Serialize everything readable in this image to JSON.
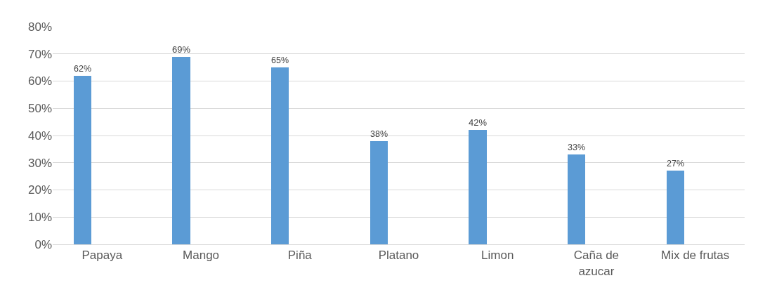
{
  "chart_data": {
    "type": "bar",
    "categories": [
      "Papaya",
      "Mango",
      "Piña",
      "Platano",
      "Limon",
      "Caña de\nazucar",
      "Mix de frutas"
    ],
    "values": [
      62,
      69,
      65,
      38,
      42,
      33,
      27
    ],
    "value_labels": [
      "62%",
      "69%",
      "65%",
      "38%",
      "42%",
      "33%",
      "27%"
    ],
    "color": "#5b9bd5",
    "ylim": [
      0,
      80
    ],
    "yticks": [
      {
        "value": 0,
        "label": "0%"
      },
      {
        "value": 10,
        "label": "10%"
      },
      {
        "value": 20,
        "label": "20%"
      },
      {
        "value": 30,
        "label": "30%"
      },
      {
        "value": 40,
        "label": "40%"
      },
      {
        "value": 50,
        "label": "50%"
      },
      {
        "value": 60,
        "label": "60%"
      },
      {
        "value": 70,
        "label": "70%"
      },
      {
        "value": 80,
        "label": "80%"
      }
    ],
    "grid": "y"
  }
}
